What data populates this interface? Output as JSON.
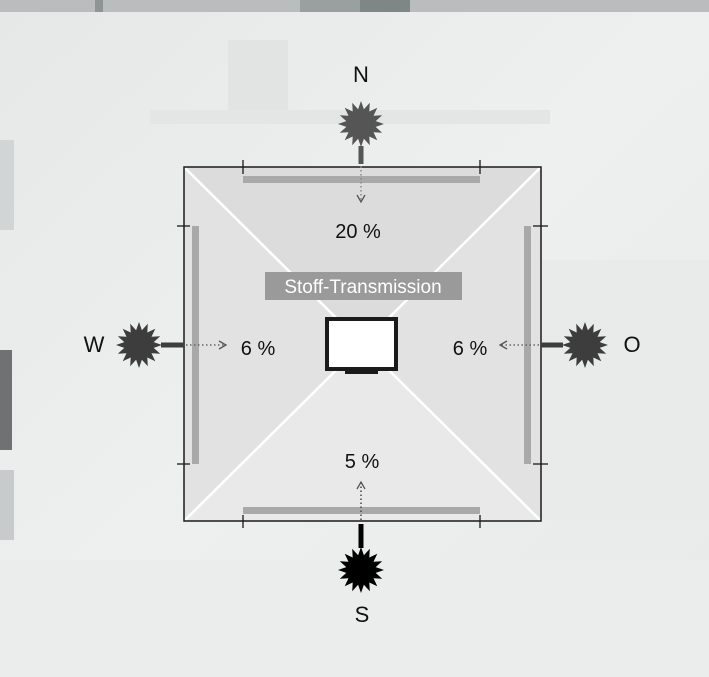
{
  "diagram": {
    "title_badge": "Stoff-Transmission",
    "directions": {
      "north": {
        "letter": "N",
        "transmission": "20 %"
      },
      "west": {
        "letter": "W",
        "transmission": "6 %"
      },
      "east": {
        "letter": "O",
        "transmission": "6 %"
      },
      "south": {
        "letter": "S",
        "transmission": "5 %"
      }
    },
    "icons": {
      "sun": "sun-burst-icon",
      "tv": "television-icon"
    },
    "colors": {
      "sun_dim": "#555555",
      "sun_strong": "#000000",
      "top_face": "#dcdcdc",
      "side_face": "#e4e4e4",
      "bottom_face": "#e9e9e9",
      "awning_bar": "#a9a9a9",
      "badge_bg": "#9a9a9a"
    }
  }
}
